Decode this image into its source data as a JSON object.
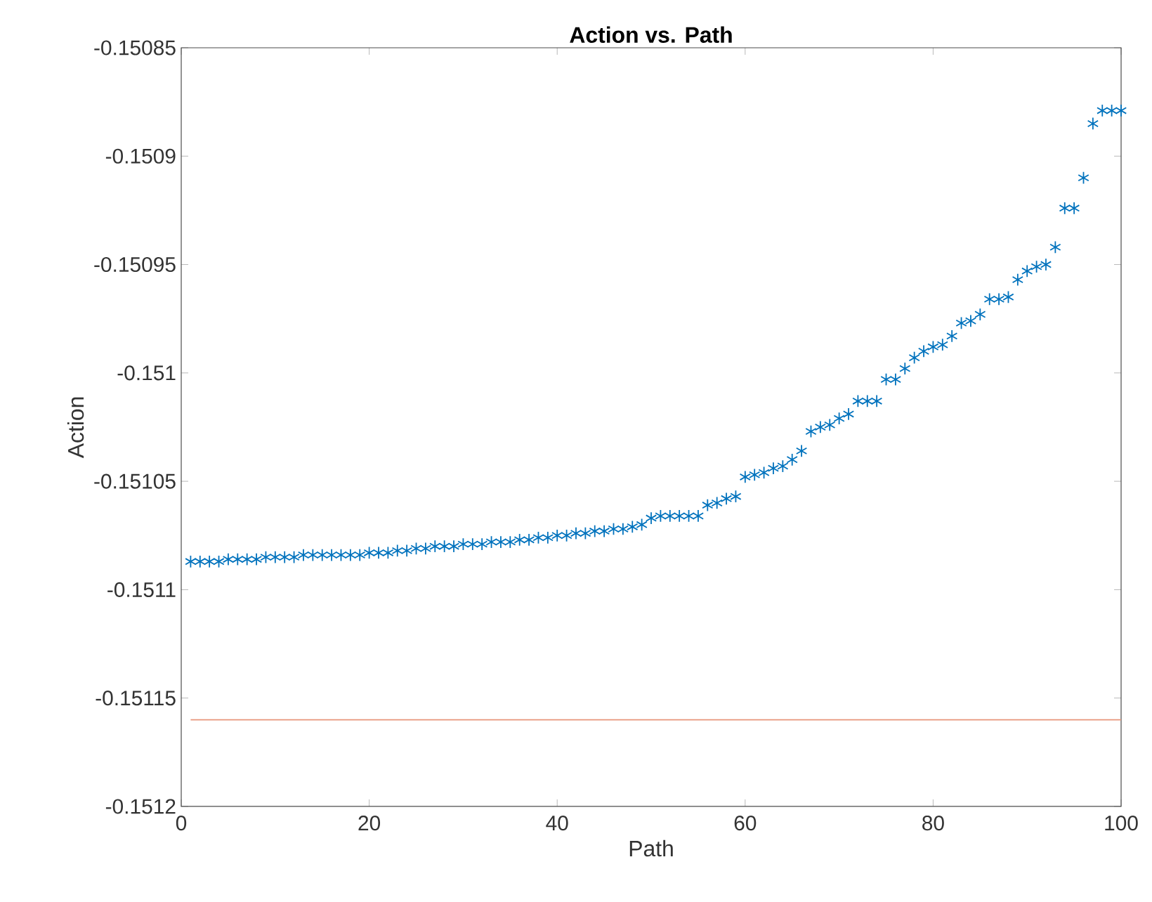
{
  "chart_data": {
    "type": "scatter",
    "title": "Action vs. Path",
    "xlabel": "Path",
    "ylabel": "Action",
    "xlim": [
      0,
      100
    ],
    "xticks": [
      0,
      20,
      40,
      60,
      80,
      100
    ],
    "ylim": [
      -0.1512,
      -0.15085
    ],
    "yticks": [
      -0.1512,
      -0.15115,
      -0.1511,
      -0.15105,
      -0.151,
      -0.15095,
      -0.1509,
      -0.15085
    ],
    "grid": false,
    "x": [
      1,
      2,
      3,
      4,
      5,
      6,
      7,
      8,
      9,
      10,
      11,
      12,
      13,
      14,
      15,
      16,
      17,
      18,
      19,
      20,
      21,
      22,
      23,
      24,
      25,
      26,
      27,
      28,
      29,
      30,
      31,
      32,
      33,
      34,
      35,
      36,
      37,
      38,
      39,
      40,
      41,
      42,
      43,
      44,
      45,
      46,
      47,
      48,
      49,
      50,
      51,
      52,
      53,
      54,
      55,
      56,
      57,
      58,
      59,
      60,
      61,
      62,
      63,
      64,
      65,
      66,
      67,
      68,
      69,
      70,
      71,
      72,
      73,
      74,
      75,
      76,
      77,
      78,
      79,
      80,
      81,
      82,
      83,
      84,
      85,
      86,
      87,
      88,
      89,
      90,
      91,
      92,
      93,
      94,
      95,
      96,
      97,
      98,
      99,
      100
    ],
    "series": [
      {
        "color": "#0072bd",
        "marker": "cross",
        "values": [
          -0.151087,
          -0.151087,
          -0.151087,
          -0.151087,
          -0.151086,
          -0.151086,
          -0.151086,
          -0.151086,
          -0.151085,
          -0.151085,
          -0.151085,
          -0.151085,
          -0.151084,
          -0.151084,
          -0.151084,
          -0.151084,
          -0.151084,
          -0.151084,
          -0.151084,
          -0.151083,
          -0.151083,
          -0.151083,
          -0.151082,
          -0.151082,
          -0.151081,
          -0.151081,
          -0.15108,
          -0.15108,
          -0.15108,
          -0.151079,
          -0.151079,
          -0.151079,
          -0.151078,
          -0.151078,
          -0.151078,
          -0.151077,
          -0.151077,
          -0.151076,
          -0.151076,
          -0.151075,
          -0.151075,
          -0.151074,
          -0.151074,
          -0.151073,
          -0.151073,
          -0.151072,
          -0.151072,
          -0.151071,
          -0.15107,
          -0.151067,
          -0.151066,
          -0.151066,
          -0.151066,
          -0.151066,
          -0.151066,
          -0.151061,
          -0.15106,
          -0.151058,
          -0.151057,
          -0.151048,
          -0.151047,
          -0.151046,
          -0.151044,
          -0.151043,
          -0.15104,
          -0.151036,
          -0.151027,
          -0.151025,
          -0.151024,
          -0.151021,
          -0.151019,
          -0.151013,
          -0.151013,
          -0.151013,
          -0.151003,
          -0.151003,
          -0.150998,
          -0.150993,
          -0.15099,
          -0.150988,
          -0.150987,
          -0.150983,
          -0.150977,
          -0.150976,
          -0.150973,
          -0.150966,
          -0.150966,
          -0.150965,
          -0.150957,
          -0.150953,
          -0.150951,
          -0.15095,
          -0.150942,
          -0.150924,
          -0.150924,
          -0.15091,
          -0.150885,
          -0.150879,
          -0.150879,
          -0.150879
        ]
      },
      {
        "type": "line",
        "color": "#e8957a",
        "marker": "none",
        "x": [
          1,
          100
        ],
        "values": [
          -0.15116,
          -0.15116
        ]
      }
    ]
  }
}
